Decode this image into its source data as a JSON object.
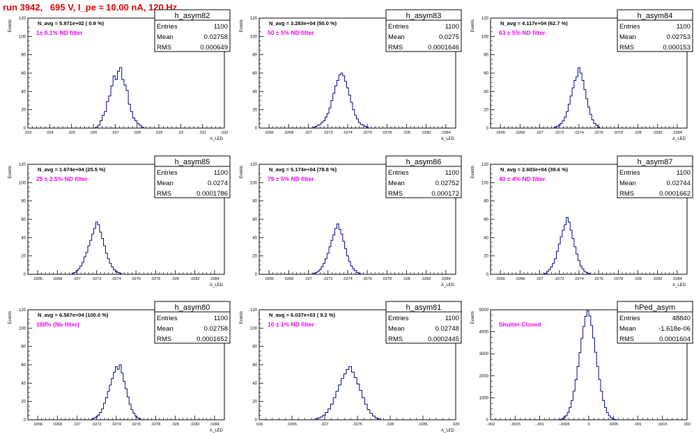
{
  "run_title": "run 3942,   695 V, I_pe ≈ 10.00 nA, 120 Hz",
  "colors": {
    "hist": "#00008b",
    "note": "#ee00ee",
    "title": "#e00000",
    "axis": "#000000"
  },
  "chart_data": [
    {
      "type": "bar",
      "name": "h_asym82",
      "stats": {
        "entries": "1100",
        "mean": "0.02758",
        "rms": "0.000649"
      },
      "info": "N_avg = 5.971e+02 ( 0.9 %)",
      "note": "1± 0.1% ND filter",
      "xlabel": "A_LED",
      "ylabel": "Events",
      "xlim": [
        0.023,
        0.032
      ],
      "ylim": [
        0,
        120
      ],
      "xticks": [
        0.023,
        0.024,
        0.025,
        0.026,
        0.027,
        0.028,
        0.029,
        0.03,
        0.031,
        0.032
      ],
      "yticks": [
        0,
        20,
        40,
        60,
        80,
        100,
        120
      ],
      "bins": {
        "start": 0.0261,
        "width": 0.0001,
        "values": [
          1,
          3,
          8,
          14,
          18,
          29,
          35,
          46,
          57,
          53,
          62,
          66,
          53,
          47,
          41,
          26,
          18,
          11,
          8,
          5,
          3,
          1
        ]
      }
    },
    {
      "type": "bar",
      "name": "h_asym83",
      "stats": {
        "entries": "1100",
        "mean": "0.0275",
        "rms": "0.0001646"
      },
      "info": "N_avg = 3.283e+04 (50.0 %)",
      "note": "50 ± 5% ND filter",
      "xlabel": "A_LED",
      "ylabel": "Events",
      "xlim": [
        0.0265,
        0.0285
      ],
      "ylim": [
        0,
        120
      ],
      "xticks": [
        0.0266,
        0.0268,
        0.027,
        0.0272,
        0.0274,
        0.0276,
        0.0278,
        0.028,
        0.0282,
        0.0284
      ],
      "yticks": [
        0,
        20,
        40,
        60,
        80,
        100,
        120
      ],
      "bins": {
        "start": 0.02705,
        "width": 2e-05,
        "values": [
          1,
          2,
          3,
          4,
          6,
          8,
          12,
          16,
          22,
          30,
          38,
          46,
          52,
          58,
          60,
          57,
          51,
          44,
          36,
          28,
          20,
          14,
          10,
          6,
          4,
          3,
          2,
          1
        ]
      }
    },
    {
      "type": "bar",
      "name": "h_asym84",
      "stats": {
        "entries": "1100",
        "mean": "0.02753",
        "rms": "0.000153"
      },
      "info": "N_avg = 4.117e+04 (62.7 %)",
      "note": "63 ± 5% ND filter",
      "xlabel": "A_LED",
      "ylabel": "Events",
      "xlim": [
        0.0265,
        0.0285
      ],
      "ylim": [
        0,
        120
      ],
      "xticks": [
        0.0266,
        0.0268,
        0.027,
        0.0272,
        0.0274,
        0.0276,
        0.0278,
        0.028,
        0.0282,
        0.0284
      ],
      "yticks": [
        0,
        20,
        40,
        60,
        80,
        100,
        120
      ],
      "bins": {
        "start": 0.02715,
        "width": 2e-05,
        "values": [
          1,
          2,
          3,
          5,
          8,
          12,
          18,
          26,
          35,
          44,
          52,
          56,
          66,
          60,
          52,
          42,
          32,
          23,
          15,
          9,
          5,
          3,
          1
        ]
      }
    },
    {
      "type": "bar",
      "name": "h_asym85",
      "stats": {
        "entries": "1100",
        "mean": "0.0274",
        "rms": "0.0001786"
      },
      "info": "N_avg = 1.674e+04 (25.5 %)",
      "note": "25 ± 2.5% ND filter",
      "xlabel": "A_LED",
      "ylabel": "Events",
      "xlim": [
        0.0265,
        0.0285
      ],
      "ylim": [
        0,
        120
      ],
      "xticks": [
        0.0266,
        0.0268,
        0.027,
        0.0272,
        0.0274,
        0.0276,
        0.0278,
        0.028,
        0.0282,
        0.0284
      ],
      "yticks": [
        0,
        20,
        40,
        60,
        80,
        100,
        120
      ],
      "bins": {
        "start": 0.02695,
        "width": 2e-05,
        "values": [
          1,
          2,
          4,
          6,
          9,
          13,
          19,
          24,
          31,
          37,
          44,
          50,
          57,
          54,
          46,
          39,
          31,
          23,
          17,
          12,
          8,
          5,
          3,
          2,
          1
        ]
      }
    },
    {
      "type": "bar",
      "name": "h_asym86",
      "stats": {
        "entries": "1100",
        "mean": "0.02752",
        "rms": "0.000172"
      },
      "info": "N_avg = 5.174e+04 (78.8 %)",
      "note": "79 ± 5% ND filter",
      "xlabel": "A_LED",
      "ylabel": "Events",
      "xlim": [
        0.0265,
        0.0285
      ],
      "ylim": [
        0,
        120
      ],
      "xticks": [
        0.0266,
        0.0268,
        0.027,
        0.0272,
        0.0274,
        0.0276,
        0.0278,
        0.028,
        0.0282,
        0.0284
      ],
      "yticks": [
        0,
        20,
        40,
        60,
        80,
        100,
        120
      ],
      "bins": {
        "start": 0.02705,
        "width": 2e-05,
        "values": [
          1,
          2,
          3,
          5,
          8,
          12,
          17,
          23,
          30,
          37,
          43,
          50,
          55,
          49,
          44,
          36,
          28,
          20,
          14,
          9,
          6,
          4,
          2,
          1
        ]
      }
    },
    {
      "type": "bar",
      "name": "h_asym87",
      "stats": {
        "entries": "1100",
        "mean": "0.02744",
        "rms": "0.0001662"
      },
      "info": "N_avg = 2.603e+04 (39.6 %)",
      "note": "40 ± 4% ND filter",
      "xlabel": "A_LED",
      "ylabel": "Events",
      "xlim": [
        0.0265,
        0.0285
      ],
      "ylim": [
        0,
        120
      ],
      "xticks": [
        0.0266,
        0.0268,
        0.027,
        0.0272,
        0.0274,
        0.0276,
        0.0278,
        0.028,
        0.0282,
        0.0284
      ],
      "yticks": [
        0,
        20,
        40,
        60,
        80,
        100,
        120
      ],
      "bins": {
        "start": 0.02705,
        "width": 2e-05,
        "values": [
          1,
          3,
          5,
          8,
          12,
          17,
          25,
          33,
          41,
          48,
          54,
          62,
          57,
          48,
          39,
          30,
          22,
          15,
          9,
          6,
          3,
          2,
          1
        ]
      }
    },
    {
      "type": "bar",
      "name": "h_asym80",
      "stats": {
        "entries": "1100",
        "mean": "0.02758",
        "rms": "0.0001652"
      },
      "info": "N_avg = 6.567e+04 (100.0 %)",
      "note": "100% (No filter)",
      "xlabel": "A_LED",
      "ylabel": "Events",
      "xlim": [
        0.0265,
        0.0285
      ],
      "ylim": [
        0,
        120
      ],
      "xticks": [
        0.0266,
        0.0268,
        0.027,
        0.0272,
        0.0274,
        0.0276,
        0.0278,
        0.028,
        0.0282,
        0.0284
      ],
      "yticks": [
        0,
        20,
        40,
        60,
        80,
        100,
        120
      ],
      "bins": {
        "start": 0.02715,
        "width": 2e-05,
        "values": [
          1,
          2,
          3,
          5,
          8,
          12,
          18,
          24,
          31,
          38,
          45,
          52,
          58,
          55,
          60,
          51,
          42,
          34,
          25,
          17,
          11,
          7,
          4,
          2,
          1
        ]
      }
    },
    {
      "type": "bar",
      "name": "h_asym81",
      "stats": {
        "entries": "1100",
        "mean": "0.02748",
        "rms": "0.0002445"
      },
      "info": "N_avg = 6.037e+03 ( 9.2 %)",
      "note": "10 ± 1% ND filter",
      "xlabel": "A_LED",
      "ylabel": "Events",
      "xlim": [
        0.026,
        0.029
      ],
      "ylim": [
        0,
        120
      ],
      "xticks": [
        0.026,
        0.0265,
        0.027,
        0.0275,
        0.028,
        0.0285,
        0.029
      ],
      "yticks": [
        0,
        20,
        40,
        60,
        80,
        100,
        120
      ],
      "bins": {
        "start": 0.02685,
        "width": 4e-05,
        "values": [
          1,
          2,
          3,
          5,
          8,
          12,
          17,
          24,
          31,
          38,
          45,
          50,
          55,
          58,
          52,
          46,
          39,
          32,
          24,
          17,
          11,
          7,
          4,
          2,
          1
        ]
      }
    },
    {
      "type": "bar",
      "name": "hPed_asym",
      "stats": {
        "entries": "48840",
        "mean": "-1.618e-06",
        "rms": "0.0001604"
      },
      "info": "",
      "note": "Shutter Closed",
      "xlabel": "",
      "ylabel": "Events",
      "xlim": [
        -0.002,
        0.002
      ],
      "ylim": [
        0,
        5000
      ],
      "xticks": [
        -0.002,
        -0.0015,
        -0.001,
        -0.0005,
        0,
        0.0005,
        0.001,
        0.0015,
        0.002
      ],
      "yticks": [
        0,
        1000,
        2000,
        3000,
        4000,
        5000
      ],
      "bins": {
        "start": -0.00064,
        "width": 4e-05,
        "values": [
          5,
          15,
          40,
          90,
          180,
          330,
          560,
          880,
          1300,
          1820,
          2420,
          3050,
          3700,
          4250,
          4700,
          4950,
          4720,
          4280,
          3720,
          3070,
          2430,
          1830,
          1300,
          880,
          560,
          330,
          180,
          90,
          40,
          15,
          5,
          2
        ]
      }
    }
  ],
  "labels": {
    "entries": "Entries",
    "mean": "Mean",
    "rms": "RMS"
  }
}
